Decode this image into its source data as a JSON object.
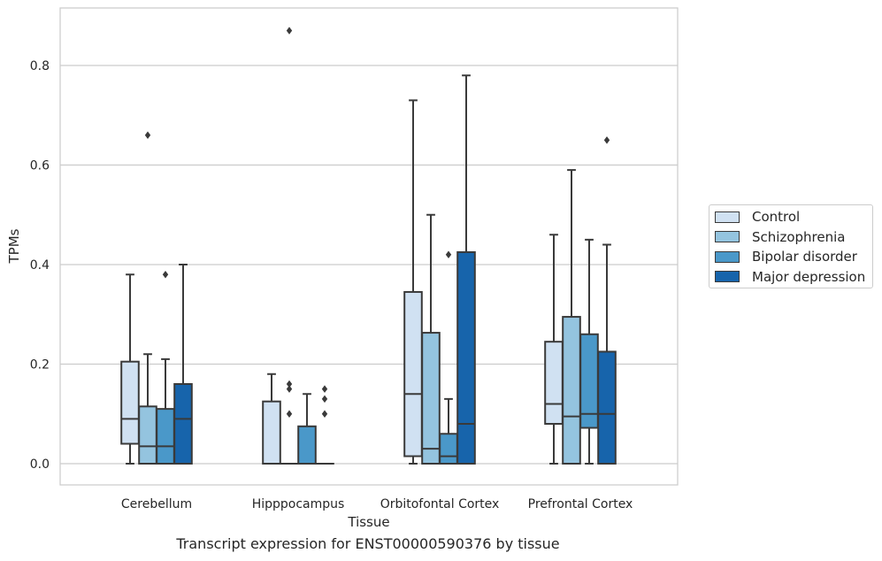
{
  "chart_data": {
    "type": "box",
    "title": "",
    "caption": "Transcript expression for ENST00000590376 by tissue",
    "xlabel": "Tissue",
    "ylabel": "TPMs",
    "ylim": [
      -0.04,
      0.92
    ],
    "yticks": [
      "0.0",
      "0.2",
      "0.4",
      "0.6",
      "0.8"
    ],
    "grid": true,
    "legend_position": "right",
    "categories": [
      "Cerebellum",
      "Hipppocampus",
      "Orbitofontal Cortex",
      "Prefrontal Cortex"
    ],
    "series": [
      {
        "name": "Control",
        "color": "#d0e1f2",
        "boxes": [
          {
            "whislo": 0.0,
            "q1": 0.04,
            "median": 0.09,
            "q3": 0.205,
            "whishi": 0.38,
            "fliers": []
          },
          {
            "whislo": 0.0,
            "q1": 0.0,
            "median": 0.0,
            "q3": 0.125,
            "whishi": 0.18,
            "fliers": []
          },
          {
            "whislo": 0.0,
            "q1": 0.015,
            "median": 0.14,
            "q3": 0.345,
            "whishi": 0.73,
            "fliers": []
          },
          {
            "whislo": 0.0,
            "q1": 0.08,
            "median": 0.12,
            "q3": 0.245,
            "whishi": 0.46,
            "fliers": []
          }
        ]
      },
      {
        "name": "Schizophrenia",
        "color": "#94c4df",
        "boxes": [
          {
            "whislo": 0.0,
            "q1": 0.0,
            "median": 0.035,
            "q3": 0.115,
            "whishi": 0.22,
            "fliers": [
              0.66
            ]
          },
          {
            "whislo": 0.0,
            "q1": 0.0,
            "median": 0.0,
            "q3": 0.0,
            "whishi": 0.0,
            "fliers": [
              0.1,
              0.15,
              0.16,
              0.87
            ]
          },
          {
            "whislo": 0.0,
            "q1": 0.0,
            "median": 0.03,
            "q3": 0.263,
            "whishi": 0.5,
            "fliers": []
          },
          {
            "whislo": 0.0,
            "q1": 0.0,
            "median": 0.095,
            "q3": 0.295,
            "whishi": 0.59,
            "fliers": []
          }
        ]
      },
      {
        "name": "Bipolar disorder",
        "color": "#4a98c9",
        "boxes": [
          {
            "whislo": 0.0,
            "q1": 0.0,
            "median": 0.035,
            "q3": 0.11,
            "whishi": 0.21,
            "fliers": [
              0.38
            ]
          },
          {
            "whislo": 0.0,
            "q1": 0.0,
            "median": 0.0,
            "q3": 0.075,
            "whishi": 0.14,
            "fliers": []
          },
          {
            "whislo": 0.0,
            "q1": 0.0,
            "median": 0.015,
            "q3": 0.06,
            "whishi": 0.13,
            "fliers": [
              0.42
            ]
          },
          {
            "whislo": 0.0,
            "q1": 0.072,
            "median": 0.1,
            "q3": 0.26,
            "whishi": 0.45,
            "fliers": []
          }
        ]
      },
      {
        "name": "Major depression",
        "color": "#1764ab",
        "boxes": [
          {
            "whislo": 0.0,
            "q1": 0.0,
            "median": 0.09,
            "q3": 0.16,
            "whishi": 0.4,
            "fliers": []
          },
          {
            "whislo": 0.0,
            "q1": 0.0,
            "median": 0.0,
            "q3": 0.0,
            "whishi": 0.0,
            "fliers": [
              0.1,
              0.13,
              0.15
            ]
          },
          {
            "whislo": 0.0,
            "q1": 0.0,
            "median": 0.08,
            "q3": 0.425,
            "whishi": 0.78,
            "fliers": []
          },
          {
            "whislo": 0.0,
            "q1": 0.0,
            "median": 0.1,
            "q3": 0.225,
            "whishi": 0.44,
            "fliers": [
              0.65
            ]
          }
        ]
      }
    ]
  }
}
